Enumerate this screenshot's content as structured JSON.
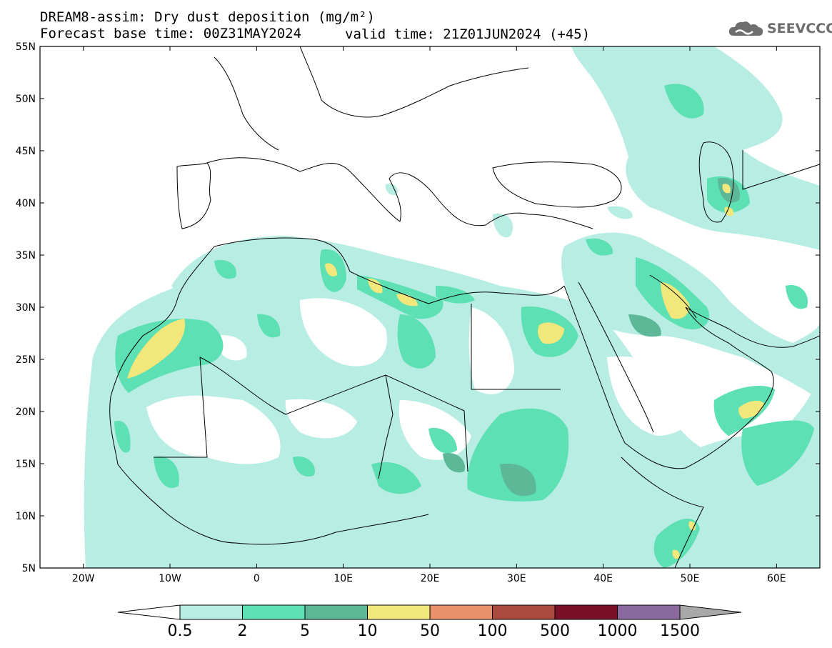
{
  "title": {
    "line1": "DREAM8-assim: Dry dust deposition (mg/m²)",
    "line2_base": "Forecast base time: 00Z31MAY2024",
    "line2_valid": "valid time: 21Z01JUN2024 (+45)"
  },
  "logo": {
    "text": "SEEVCCC",
    "icon": "cloud-icon"
  },
  "map": {
    "lon_range": [
      -25,
      65
    ],
    "lat_range": [
      5,
      55
    ],
    "lon_ticks": [
      {
        "value": -20,
        "label": "20W"
      },
      {
        "value": -10,
        "label": "10W"
      },
      {
        "value": 0,
        "label": "0"
      },
      {
        "value": 10,
        "label": "10E"
      },
      {
        "value": 20,
        "label": "20E"
      },
      {
        "value": 30,
        "label": "30E"
      },
      {
        "value": 40,
        "label": "40E"
      },
      {
        "value": 50,
        "label": "50E"
      },
      {
        "value": 60,
        "label": "60E"
      }
    ],
    "lat_ticks": [
      {
        "value": 55,
        "label": "55N"
      },
      {
        "value": 50,
        "label": "50N"
      },
      {
        "value": 45,
        "label": "45N"
      },
      {
        "value": 40,
        "label": "40N"
      },
      {
        "value": 35,
        "label": "35N"
      },
      {
        "value": 30,
        "label": "30N"
      },
      {
        "value": 25,
        "label": "25N"
      },
      {
        "value": 20,
        "label": "20N"
      },
      {
        "value": 15,
        "label": "15N"
      },
      {
        "value": 10,
        "label": "10N"
      },
      {
        "value": 5,
        "label": "5N"
      }
    ]
  },
  "colorbar": {
    "colors": [
      "#b8ede4",
      "#5ce0b4",
      "#5cb896",
      "#f2e77a",
      "#e8916a",
      "#a84a3c",
      "#7a0f2a",
      "#8a6a9e"
    ],
    "labels": [
      "0.5",
      "2",
      "5",
      "10",
      "50",
      "100",
      "500",
      "1000",
      "1500"
    ],
    "under_color": "#ffffff",
    "over_color": "#a8a8a8"
  }
}
